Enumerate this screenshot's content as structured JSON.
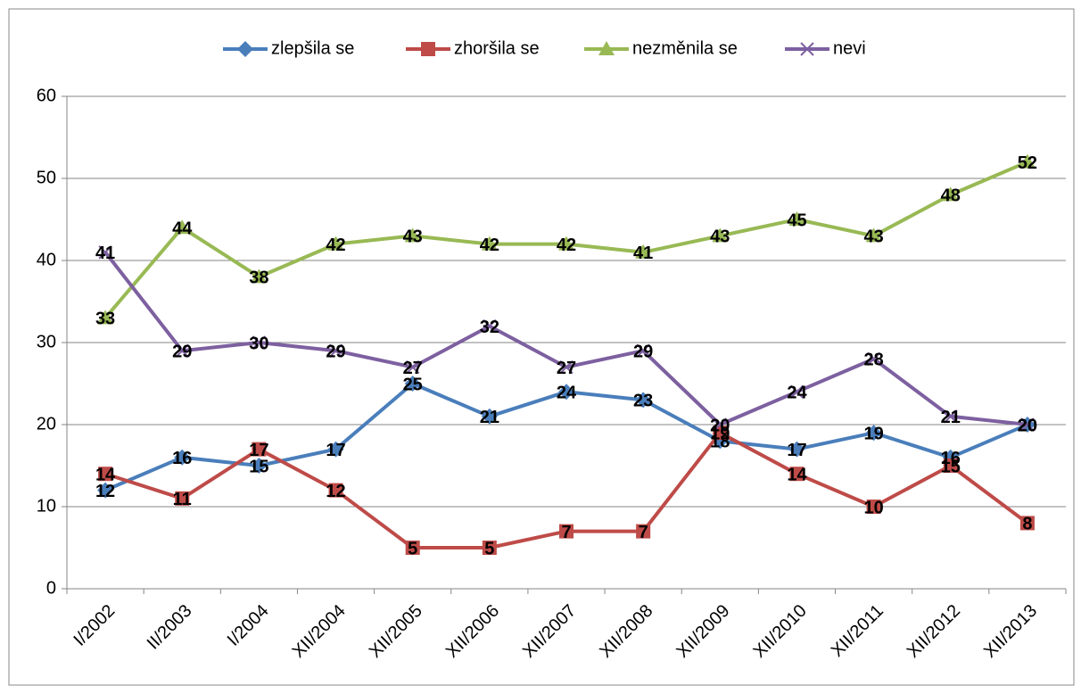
{
  "chart_data": {
    "type": "line",
    "categories": [
      "I/2002",
      "II/2003",
      "I/2004",
      "XII/2004",
      "XII/2005",
      "XII/2006",
      "XII/2007",
      "XII/2008",
      "XII/2009",
      "XII/2010",
      "XII/2011",
      "XII/2012",
      "XII/2013"
    ],
    "series": [
      {
        "name": "zlepšila se",
        "color": "#4a7ebb",
        "marker": "diamond",
        "values": [
          12,
          16,
          15,
          17,
          25,
          21,
          24,
          23,
          18,
          17,
          19,
          16,
          20
        ]
      },
      {
        "name": "zhoršila se",
        "color": "#be4b48",
        "marker": "square",
        "values": [
          14,
          11,
          17,
          12,
          5,
          5,
          7,
          7,
          19,
          14,
          10,
          15,
          8
        ]
      },
      {
        "name": "nezměnila se",
        "color": "#98b954",
        "marker": "triangle",
        "values": [
          33,
          44,
          38,
          42,
          43,
          42,
          42,
          41,
          43,
          45,
          43,
          48,
          52
        ]
      },
      {
        "name": "nevi",
        "color": "#7d60a0",
        "marker": "x",
        "values": [
          41,
          29,
          30,
          29,
          27,
          32,
          27,
          29,
          20,
          24,
          28,
          21,
          20
        ]
      }
    ],
    "ylim": [
      0,
      60
    ],
    "yticks": [
      0,
      10,
      20,
      30,
      40,
      50,
      60
    ],
    "grid": true,
    "legend": "top"
  }
}
